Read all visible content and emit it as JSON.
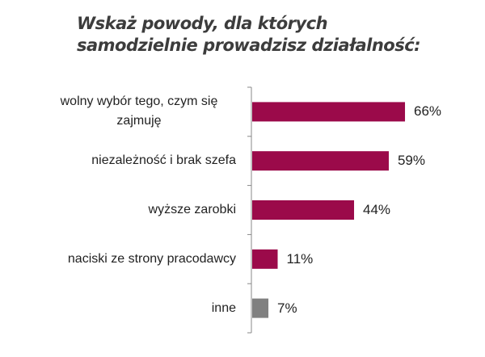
{
  "chart_data": {
    "type": "hbar",
    "title": "Wskaż powody, dla których samodzielnie prowadzisz działalność:",
    "categories": [
      "wolny wybór tego, czym się zajmuję",
      "niezależność i brak szefa",
      "wyższe zarobki",
      "naciski ze strony pracodawcy",
      "inne"
    ],
    "values": [
      66,
      59,
      44,
      11,
      7
    ],
    "value_labels": [
      "66%",
      "59%",
      "44%",
      "11%",
      "7%"
    ],
    "colors": [
      "#9b0a4a",
      "#9b0a4a",
      "#9b0a4a",
      "#9b0a4a",
      "#808080"
    ]
  }
}
